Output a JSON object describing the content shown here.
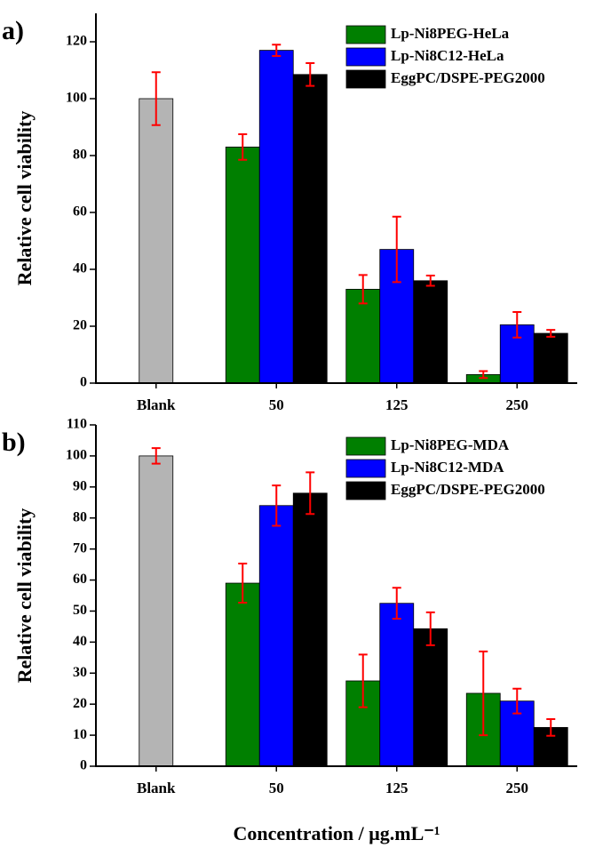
{
  "chart_data": [
    {
      "type": "bar",
      "panel_label": "a)",
      "y_label": "Relative cell viability",
      "categories": [
        "Blank",
        "50",
        "125",
        "250"
      ],
      "blank": {
        "value": 100,
        "error": 9.3,
        "color": "#b4b4b4"
      },
      "series": [
        {
          "name": "Lp-Ni8PEG-HeLa",
          "color": "#007f00",
          "values": [
            null,
            83,
            33,
            3
          ],
          "errors": [
            null,
            4.5,
            5,
            1.2
          ]
        },
        {
          "name": "Lp-Ni8C12-HeLa",
          "color": "#0000ff",
          "values": [
            null,
            117,
            47,
            20.5
          ],
          "errors": [
            null,
            2,
            11.5,
            4.5
          ]
        },
        {
          "name": "EggPC/DSPE-PEG2000",
          "color": "#000000",
          "values": [
            null,
            108.5,
            36,
            17.5
          ],
          "errors": [
            null,
            4,
            1.8,
            1.2
          ]
        }
      ],
      "error_color": "#ff0000",
      "ylim": [
        0,
        130
      ],
      "yticks": [
        0,
        20,
        40,
        60,
        80,
        100,
        120
      ]
    },
    {
      "type": "bar",
      "panel_label": "b)",
      "y_label": "Relative cell viability",
      "x_label": "Concentration / μg.mL⁻¹",
      "categories": [
        "Blank",
        "50",
        "125",
        "250"
      ],
      "blank": {
        "value": 100,
        "error": 2.5,
        "color": "#b4b4b4"
      },
      "series": [
        {
          "name": "Lp-Ni8PEG-MDA",
          "color": "#007f00",
          "values": [
            null,
            59,
            27.5,
            23.5
          ],
          "errors": [
            null,
            6.3,
            8.5,
            13.5
          ]
        },
        {
          "name": "Lp-Ni8C12-MDA",
          "color": "#0000ff",
          "values": [
            null,
            84,
            52.5,
            21
          ],
          "errors": [
            null,
            6.5,
            5,
            4
          ]
        },
        {
          "name": "EggPC/DSPE-PEG2000",
          "color": "#000000",
          "values": [
            null,
            88,
            44.3,
            12.5
          ],
          "errors": [
            null,
            6.7,
            5.3,
            2.7
          ]
        }
      ],
      "error_color": "#ff0000",
      "ylim": [
        0,
        110
      ],
      "yticks": [
        0,
        10,
        20,
        30,
        40,
        50,
        60,
        70,
        80,
        90,
        100,
        110
      ]
    }
  ]
}
